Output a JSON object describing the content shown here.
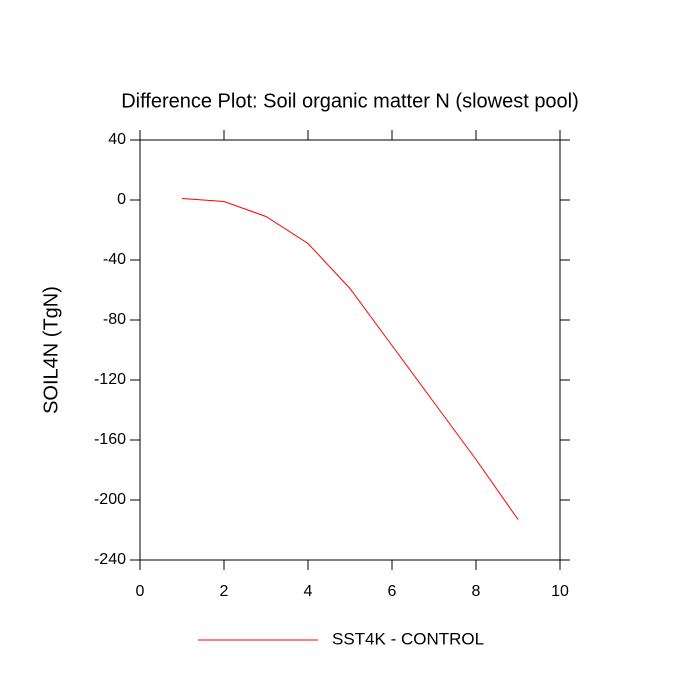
{
  "chart_data": {
    "type": "line",
    "title": "Difference Plot: Soil organic matter N (slowest pool)",
    "y_label": "SOIL4N  (TgN)",
    "x": [
      1,
      2,
      3,
      4,
      5,
      6,
      7,
      8,
      9
    ],
    "series": [
      {
        "name": "SST4K - CONTROL",
        "color": "#ff0000",
        "values": [
          1,
          -1,
          -11,
          -29,
          -59,
          -97,
          -135,
          -173,
          -213
        ]
      }
    ],
    "xlim": [
      0,
      10
    ],
    "xticks": [
      0,
      2,
      4,
      6,
      8,
      10
    ],
    "ylim": [
      -240,
      40
    ],
    "yticks": [
      40,
      0,
      -40,
      -80,
      -120,
      -160,
      -200,
      -240
    ],
    "grid": false,
    "legend": "bottom"
  }
}
